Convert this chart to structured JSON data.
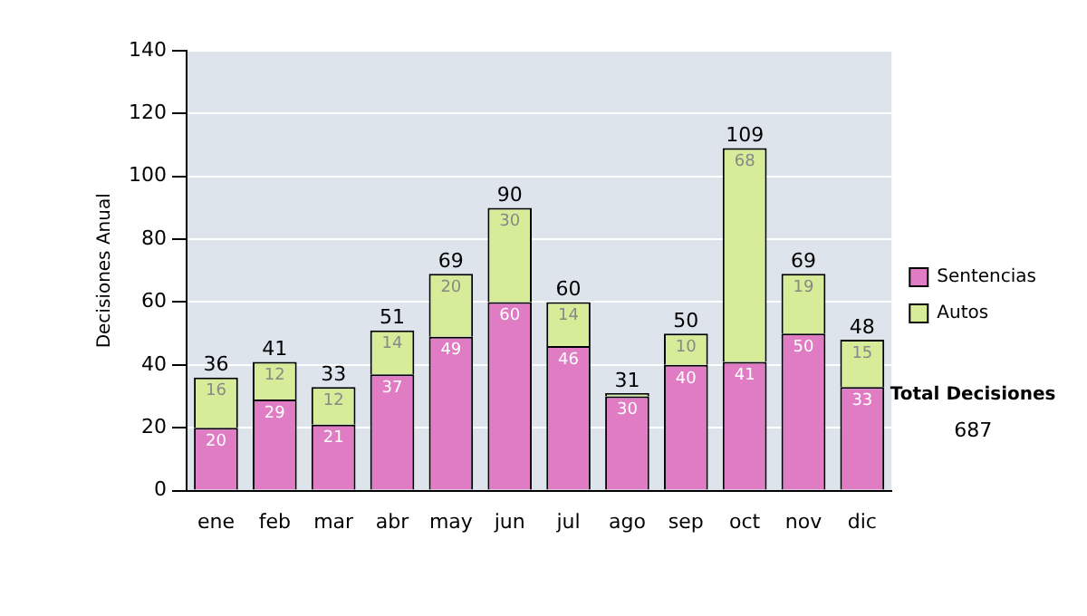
{
  "chart_data": {
    "type": "bar",
    "stacked": true,
    "ylabel": "Decisiones Anual",
    "categories": [
      "ene",
      "feb",
      "mar",
      "abr",
      "may",
      "jun",
      "jul",
      "ago",
      "sep",
      "oct",
      "nov",
      "dic"
    ],
    "series": [
      {
        "name": "Sentencias",
        "color": "#e07cc4",
        "values": [
          20,
          29,
          21,
          37,
          49,
          60,
          46,
          30,
          40,
          41,
          50,
          33
        ],
        "value_labels": [
          "20",
          "29",
          "21",
          "37",
          "49",
          "60",
          "46",
          "30",
          "40",
          "41",
          "50",
          "33"
        ]
      },
      {
        "name": "Autos",
        "color": "#d6ec98",
        "values": [
          16,
          12,
          12,
          14,
          20,
          30,
          14,
          1,
          10,
          68,
          19,
          15
        ],
        "value_labels": [
          "16",
          "12",
          "12",
          "14",
          "20",
          "30",
          "14",
          null,
          "10",
          "68",
          "19",
          "15"
        ]
      }
    ],
    "totals": [
      "36",
      "41",
      "33",
      "51",
      "69",
      "90",
      "60",
      "31",
      "50",
      "109",
      "69",
      "48"
    ],
    "ylim": [
      0,
      140
    ],
    "yticks": [
      0,
      20,
      40,
      60,
      80,
      100,
      120,
      140
    ],
    "grid": "y",
    "legend": "right",
    "annotations": [
      "Total Decisiones",
      "687"
    ]
  }
}
